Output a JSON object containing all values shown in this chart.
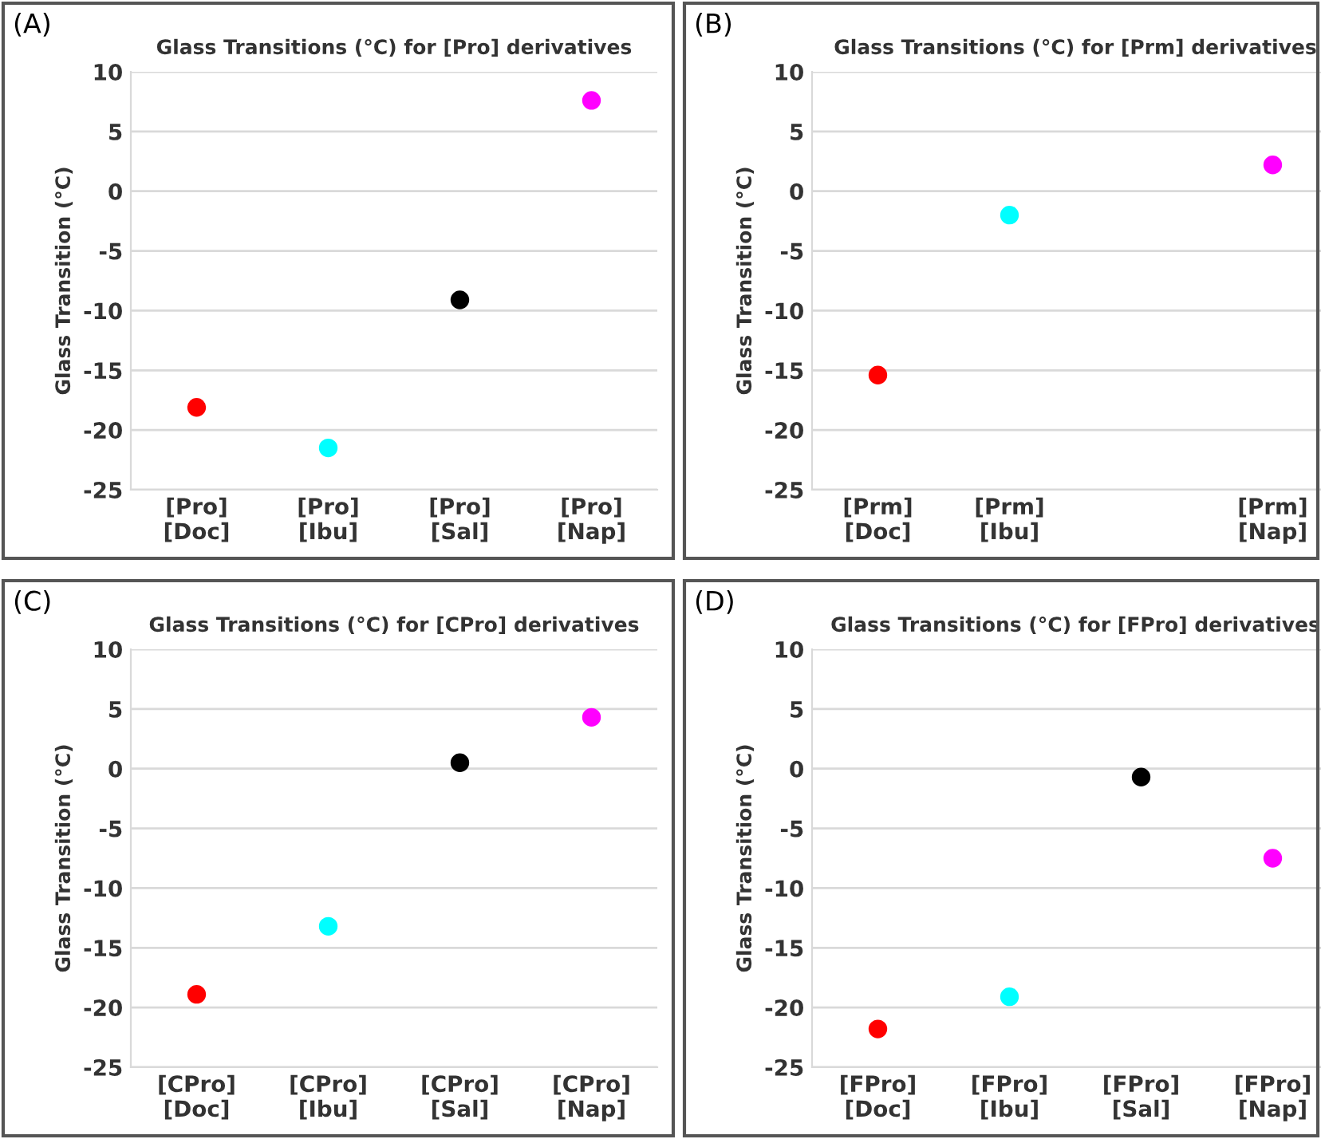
{
  "chart_data": [
    {
      "type": "scatter",
      "title": "Glass Transitions (°C) for [Pro] derivatives",
      "ylabel": "Glass Transition (°C)",
      "annotations": [
        "(A)"
      ],
      "categories": [
        "[Pro]\n[Doc]",
        "[Pro]\n[Ibu]",
        "[Pro]\n[Sal]",
        "[Pro]\n[Nap]"
      ],
      "values": [
        -18.1,
        -21.5,
        -9.1,
        7.6
      ],
      "colors": [
        "#ff0000",
        "#00ffff",
        "#000000",
        "#ff00ff"
      ],
      "ylim": [
        -25,
        10
      ],
      "yticks": [
        -25,
        -20,
        -15,
        -10,
        -5,
        0,
        5,
        10
      ],
      "grid": "y",
      "marker": "circle"
    },
    {
      "type": "scatter",
      "title": "Glass Transitions (°C) for [Prm] derivatives",
      "ylabel": "Glass Transition (°C)",
      "annotations": [
        "(B)"
      ],
      "categories": [
        "[Prm]\n[Doc]",
        "[Prm]\n[Ibu]",
        null,
        "[Prm]\n[Nap]"
      ],
      "values": [
        -15.4,
        -2.0,
        null,
        2.2
      ],
      "colors": [
        "#ff0000",
        "#00ffff",
        "#000000",
        "#ff00ff"
      ],
      "ylim": [
        -25,
        10
      ],
      "yticks": [
        -25,
        -20,
        -15,
        -10,
        -5,
        0,
        5,
        10
      ],
      "grid": "y",
      "marker": "circle"
    },
    {
      "type": "scatter",
      "title": "Glass Transitions (°C) for [CPro] derivatives",
      "ylabel": "Glass Transition (°C)",
      "annotations": [
        "(C)"
      ],
      "categories": [
        "[CPro]\n[Doc]",
        "[CPro]\n[Ibu]",
        "[CPro]\n[Sal]",
        "[CPro]\n[Nap]"
      ],
      "values": [
        -18.9,
        -13.2,
        0.5,
        4.3
      ],
      "colors": [
        "#ff0000",
        "#00ffff",
        "#000000",
        "#ff00ff"
      ],
      "ylim": [
        -25,
        10
      ],
      "yticks": [
        -25,
        -20,
        -15,
        -10,
        -5,
        0,
        5,
        10
      ],
      "grid": "y",
      "marker": "circle"
    },
    {
      "type": "scatter",
      "title": "Glass Transitions (°C) for [FPro] derivatives",
      "ylabel": "Glass Transition (°C)",
      "annotations": [
        "(D)"
      ],
      "categories": [
        "[FPro]\n[Doc]",
        "[FPro]\n[Ibu]",
        "[FPro]\n[Sal]",
        "[FPro]\n[Nap]"
      ],
      "values": [
        -21.8,
        -19.1,
        -0.7,
        -7.5
      ],
      "colors": [
        "#ff0000",
        "#00ffff",
        "#000000",
        "#ff00ff"
      ],
      "ylim": [
        -25,
        10
      ],
      "yticks": [
        -25,
        -20,
        -15,
        -10,
        -5,
        0,
        5,
        10
      ],
      "grid": "y",
      "marker": "circle"
    }
  ]
}
